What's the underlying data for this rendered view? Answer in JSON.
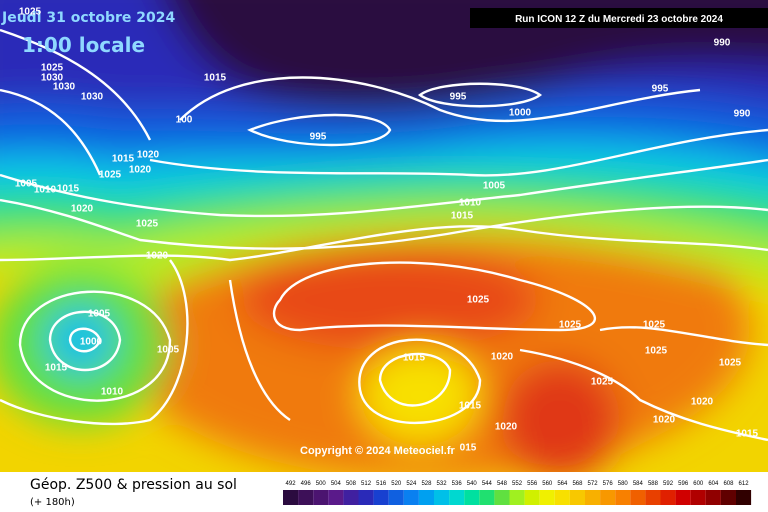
{
  "header": {
    "date": "Jeudi 31 octobre 2024",
    "time": "1:00 locale",
    "run": "Run ICON 12 Z du Mercredi 23 octobre 2024"
  },
  "isobar_labels": [
    "1025",
    "1025",
    "1030",
    "1030",
    "1030",
    "1015",
    "995",
    "995",
    "1000",
    "995",
    "990",
    "990",
    "100",
    "1015",
    "1020",
    "1025",
    "1020",
    "1005",
    "1010",
    "1015",
    "1020",
    "1025",
    "1005",
    "1010",
    "1015",
    "1020",
    "1025",
    "1025",
    "1025",
    "1025",
    "1025",
    "1025",
    "1005",
    "1000",
    "1005",
    "1015",
    "1010",
    "1015",
    "1020",
    "1015",
    "1020",
    "1020",
    "1020",
    "1015",
    "015"
  ],
  "copyright": "Copyright © 2024 Meteociel.fr",
  "footer": {
    "title": "Géop. Z500 & pression au sol",
    "lead": "(+ 180h)"
  },
  "legend": {
    "values": [
      492,
      496,
      500,
      504,
      508,
      512,
      516,
      520,
      524,
      528,
      532,
      536,
      540,
      544,
      548,
      552,
      556,
      560,
      564,
      568,
      572,
      576,
      580,
      584,
      588,
      592,
      596,
      600,
      604,
      608,
      612
    ],
    "colors": [
      "#2b0b3f",
      "#3d1058",
      "#4b1470",
      "#5a1a8a",
      "#4020a0",
      "#2a2ab8",
      "#1840d0",
      "#1060e0",
      "#0a80f0",
      "#00a0f0",
      "#00c0e8",
      "#00d8d0",
      "#00e0a0",
      "#20e070",
      "#60e040",
      "#a0f020",
      "#d0f000",
      "#f0f000",
      "#f8e000",
      "#f8c800",
      "#f8b000",
      "#f89800",
      "#f88000",
      "#f06000",
      "#e84000",
      "#e02000",
      "#d00000",
      "#b00000",
      "#900000",
      "#600000",
      "#300000"
    ]
  }
}
